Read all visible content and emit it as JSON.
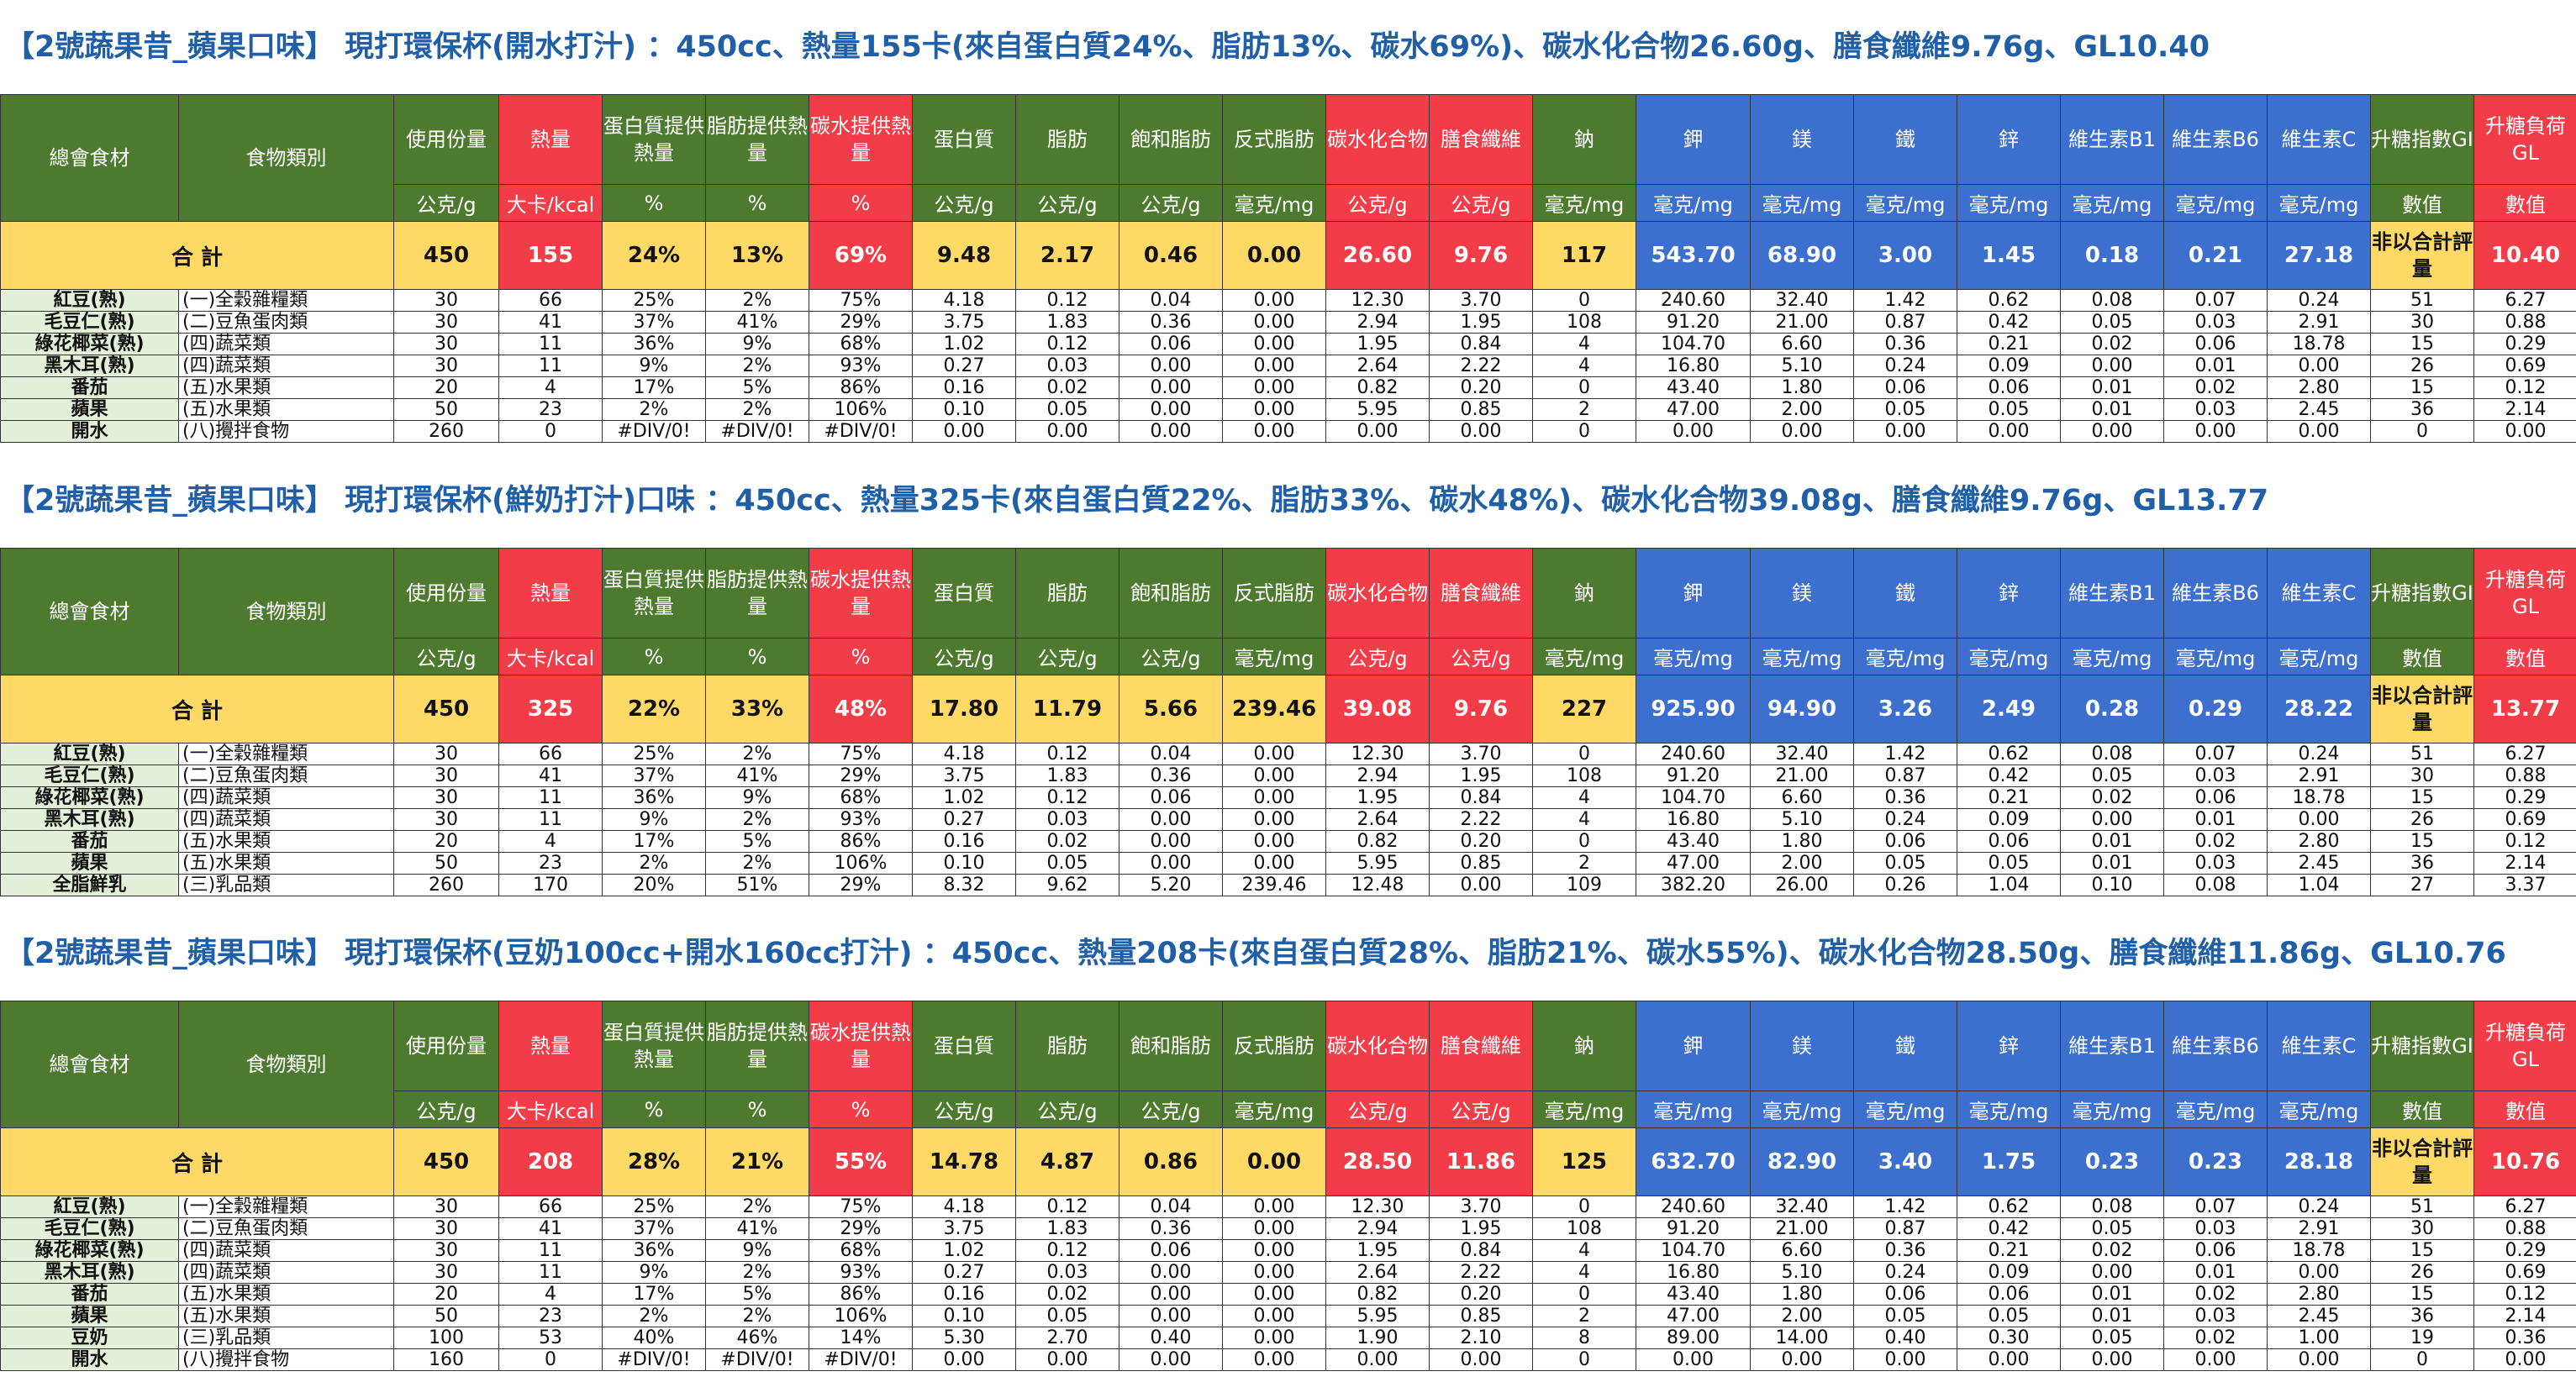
{
  "columns": [
    {
      "name": "總會食材",
      "unit": "",
      "color": "g"
    },
    {
      "name": "食物類別",
      "unit": "",
      "color": "g"
    },
    {
      "name": "使用份量",
      "unit": "公克/g",
      "color": "g"
    },
    {
      "name": "熱量",
      "unit": "大卡/kcal",
      "color": "r"
    },
    {
      "name": "蛋白質提供熱量",
      "unit": "%",
      "color": "g"
    },
    {
      "name": "脂肪提供熱量",
      "unit": "%",
      "color": "g"
    },
    {
      "name": "碳水提供熱量",
      "unit": "%",
      "color": "r"
    },
    {
      "name": "蛋白質",
      "unit": "公克/g",
      "color": "g"
    },
    {
      "name": "脂肪",
      "unit": "公克/g",
      "color": "g"
    },
    {
      "name": "飽和脂肪",
      "unit": "公克/g",
      "color": "g"
    },
    {
      "name": "反式脂肪",
      "unit": "毫克/mg",
      "color": "g"
    },
    {
      "name": "碳水化合物",
      "unit": "公克/g",
      "color": "r"
    },
    {
      "name": "膳食纖維",
      "unit": "公克/g",
      "color": "r"
    },
    {
      "name": "鈉",
      "unit": "毫克/mg",
      "color": "g"
    },
    {
      "name": "鉀",
      "unit": "毫克/mg",
      "color": "b"
    },
    {
      "name": "鎂",
      "unit": "毫克/mg",
      "color": "b"
    },
    {
      "name": "鐵",
      "unit": "毫克/mg",
      "color": "b"
    },
    {
      "name": "鋅",
      "unit": "毫克/mg",
      "color": "b"
    },
    {
      "name": "維生素B1",
      "unit": "毫克/mg",
      "color": "b"
    },
    {
      "name": "維生素B6",
      "unit": "毫克/mg",
      "color": "b"
    },
    {
      "name": "維生素C",
      "unit": "毫克/mg",
      "color": "b"
    },
    {
      "name": "升糖指數GI",
      "unit": "數值",
      "color": "g"
    },
    {
      "name": "升糖負荷GL",
      "unit": "數值",
      "color": "r"
    }
  ],
  "total_label": "合 計",
  "gi_note": "非以合計評量",
  "sections": [
    {
      "title": "【2號蔬果昔_蘋果口味】 現打環保杯(開水打汁) ：450cc、熱量155卡(來自蛋白質24%、脂肪13%、碳水69%)、碳水化合物26.60g、膳食纖維9.76g、GL10.40",
      "totals": [
        "450",
        "155",
        "24%",
        "13%",
        "69%",
        "9.48",
        "2.17",
        "0.46",
        "0.00",
        "26.60",
        "9.76",
        "117",
        "543.70",
        "68.90",
        "3.00",
        "1.45",
        "0.18",
        "0.21",
        "27.18",
        "10.40"
      ],
      "rows": [
        [
          "紅豆(熟)",
          "(一)全穀雜糧類",
          "30",
          "66",
          "25%",
          "2%",
          "75%",
          "4.18",
          "0.12",
          "0.04",
          "0.00",
          "12.30",
          "3.70",
          "0",
          "240.60",
          "32.40",
          "1.42",
          "0.62",
          "0.08",
          "0.07",
          "0.24",
          "51",
          "6.27"
        ],
        [
          "毛豆仁(熟)",
          "(二)豆魚蛋肉類",
          "30",
          "41",
          "37%",
          "41%",
          "29%",
          "3.75",
          "1.83",
          "0.36",
          "0.00",
          "2.94",
          "1.95",
          "108",
          "91.20",
          "21.00",
          "0.87",
          "0.42",
          "0.05",
          "0.03",
          "2.91",
          "30",
          "0.88"
        ],
        [
          "綠花椰菜(熟)",
          "(四)蔬菜類",
          "30",
          "11",
          "36%",
          "9%",
          "68%",
          "1.02",
          "0.12",
          "0.06",
          "0.00",
          "1.95",
          "0.84",
          "4",
          "104.70",
          "6.60",
          "0.36",
          "0.21",
          "0.02",
          "0.06",
          "18.78",
          "15",
          "0.29"
        ],
        [
          "黑木耳(熟)",
          "(四)蔬菜類",
          "30",
          "11",
          "9%",
          "2%",
          "93%",
          "0.27",
          "0.03",
          "0.00",
          "0.00",
          "2.64",
          "2.22",
          "4",
          "16.80",
          "5.10",
          "0.24",
          "0.09",
          "0.00",
          "0.01",
          "0.00",
          "26",
          "0.69"
        ],
        [
          "番茄",
          "(五)水果類",
          "20",
          "4",
          "17%",
          "5%",
          "86%",
          "0.16",
          "0.02",
          "0.00",
          "0.00",
          "0.82",
          "0.20",
          "0",
          "43.40",
          "1.80",
          "0.06",
          "0.06",
          "0.01",
          "0.02",
          "2.80",
          "15",
          "0.12"
        ],
        [
          "蘋果",
          "(五)水果類",
          "50",
          "23",
          "2%",
          "2%",
          "106%",
          "0.10",
          "0.05",
          "0.00",
          "0.00",
          "5.95",
          "0.85",
          "2",
          "47.00",
          "2.00",
          "0.05",
          "0.05",
          "0.01",
          "0.03",
          "2.45",
          "36",
          "2.14"
        ],
        [
          "開水",
          "(八)攪拌食物",
          "260",
          "0",
          "#DIV/0!",
          "#DIV/0!",
          "#DIV/0!",
          "0.00",
          "0.00",
          "0.00",
          "0.00",
          "0.00",
          "0.00",
          "0",
          "0.00",
          "0.00",
          "0.00",
          "0.00",
          "0.00",
          "0.00",
          "0.00",
          "0",
          "0.00"
        ]
      ]
    },
    {
      "title": "【2號蔬果昔_蘋果口味】 現打環保杯(鮮奶打汁)口味 ：450cc、熱量325卡(來自蛋白質22%、脂肪33%、碳水48%)、碳水化合物39.08g、膳食纖維9.76g、GL13.77",
      "totals": [
        "450",
        "325",
        "22%",
        "33%",
        "48%",
        "17.80",
        "11.79",
        "5.66",
        "239.46",
        "39.08",
        "9.76",
        "227",
        "925.90",
        "94.90",
        "3.26",
        "2.49",
        "0.28",
        "0.29",
        "28.22",
        "13.77"
      ],
      "rows": [
        [
          "紅豆(熟)",
          "(一)全穀雜糧類",
          "30",
          "66",
          "25%",
          "2%",
          "75%",
          "4.18",
          "0.12",
          "0.04",
          "0.00",
          "12.30",
          "3.70",
          "0",
          "240.60",
          "32.40",
          "1.42",
          "0.62",
          "0.08",
          "0.07",
          "0.24",
          "51",
          "6.27"
        ],
        [
          "毛豆仁(熟)",
          "(二)豆魚蛋肉類",
          "30",
          "41",
          "37%",
          "41%",
          "29%",
          "3.75",
          "1.83",
          "0.36",
          "0.00",
          "2.94",
          "1.95",
          "108",
          "91.20",
          "21.00",
          "0.87",
          "0.42",
          "0.05",
          "0.03",
          "2.91",
          "30",
          "0.88"
        ],
        [
          "綠花椰菜(熟)",
          "(四)蔬菜類",
          "30",
          "11",
          "36%",
          "9%",
          "68%",
          "1.02",
          "0.12",
          "0.06",
          "0.00",
          "1.95",
          "0.84",
          "4",
          "104.70",
          "6.60",
          "0.36",
          "0.21",
          "0.02",
          "0.06",
          "18.78",
          "15",
          "0.29"
        ],
        [
          "黑木耳(熟)",
          "(四)蔬菜類",
          "30",
          "11",
          "9%",
          "2%",
          "93%",
          "0.27",
          "0.03",
          "0.00",
          "0.00",
          "2.64",
          "2.22",
          "4",
          "16.80",
          "5.10",
          "0.24",
          "0.09",
          "0.00",
          "0.01",
          "0.00",
          "26",
          "0.69"
        ],
        [
          "番茄",
          "(五)水果類",
          "20",
          "4",
          "17%",
          "5%",
          "86%",
          "0.16",
          "0.02",
          "0.00",
          "0.00",
          "0.82",
          "0.20",
          "0",
          "43.40",
          "1.80",
          "0.06",
          "0.06",
          "0.01",
          "0.02",
          "2.80",
          "15",
          "0.12"
        ],
        [
          "蘋果",
          "(五)水果類",
          "50",
          "23",
          "2%",
          "2%",
          "106%",
          "0.10",
          "0.05",
          "0.00",
          "0.00",
          "5.95",
          "0.85",
          "2",
          "47.00",
          "2.00",
          "0.05",
          "0.05",
          "0.01",
          "0.03",
          "2.45",
          "36",
          "2.14"
        ],
        [
          "全脂鮮乳",
          "(三)乳品類",
          "260",
          "170",
          "20%",
          "51%",
          "29%",
          "8.32",
          "9.62",
          "5.20",
          "239.46",
          "12.48",
          "0.00",
          "109",
          "382.20",
          "26.00",
          "0.26",
          "1.04",
          "0.10",
          "0.08",
          "1.04",
          "27",
          "3.37"
        ]
      ]
    },
    {
      "title": "【2號蔬果昔_蘋果口味】 現打環保杯(豆奶100cc+開水160cc打汁) ：450cc、熱量208卡(來自蛋白質28%、脂肪21%、碳水55%)、碳水化合物28.50g、膳食纖維11.86g、GL10.76",
      "totals": [
        "450",
        "208",
        "28%",
        "21%",
        "55%",
        "14.78",
        "4.87",
        "0.86",
        "0.00",
        "28.50",
        "11.86",
        "125",
        "632.70",
        "82.90",
        "3.40",
        "1.75",
        "0.23",
        "0.23",
        "28.18",
        "10.76"
      ],
      "rows": [
        [
          "紅豆(熟)",
          "(一)全穀雜糧類",
          "30",
          "66",
          "25%",
          "2%",
          "75%",
          "4.18",
          "0.12",
          "0.04",
          "0.00",
          "12.30",
          "3.70",
          "0",
          "240.60",
          "32.40",
          "1.42",
          "0.62",
          "0.08",
          "0.07",
          "0.24",
          "51",
          "6.27"
        ],
        [
          "毛豆仁(熟)",
          "(二)豆魚蛋肉類",
          "30",
          "41",
          "37%",
          "41%",
          "29%",
          "3.75",
          "1.83",
          "0.36",
          "0.00",
          "2.94",
          "1.95",
          "108",
          "91.20",
          "21.00",
          "0.87",
          "0.42",
          "0.05",
          "0.03",
          "2.91",
          "30",
          "0.88"
        ],
        [
          "綠花椰菜(熟)",
          "(四)蔬菜類",
          "30",
          "11",
          "36%",
          "9%",
          "68%",
          "1.02",
          "0.12",
          "0.06",
          "0.00",
          "1.95",
          "0.84",
          "4",
          "104.70",
          "6.60",
          "0.36",
          "0.21",
          "0.02",
          "0.06",
          "18.78",
          "15",
          "0.29"
        ],
        [
          "黑木耳(熟)",
          "(四)蔬菜類",
          "30",
          "11",
          "9%",
          "2%",
          "93%",
          "0.27",
          "0.03",
          "0.00",
          "0.00",
          "2.64",
          "2.22",
          "4",
          "16.80",
          "5.10",
          "0.24",
          "0.09",
          "0.00",
          "0.01",
          "0.00",
          "26",
          "0.69"
        ],
        [
          "番茄",
          "(五)水果類",
          "20",
          "4",
          "17%",
          "5%",
          "86%",
          "0.16",
          "0.02",
          "0.00",
          "0.00",
          "0.82",
          "0.20",
          "0",
          "43.40",
          "1.80",
          "0.06",
          "0.06",
          "0.01",
          "0.02",
          "2.80",
          "15",
          "0.12"
        ],
        [
          "蘋果",
          "(五)水果類",
          "50",
          "23",
          "2%",
          "2%",
          "106%",
          "0.10",
          "0.05",
          "0.00",
          "0.00",
          "5.95",
          "0.85",
          "2",
          "47.00",
          "2.00",
          "0.05",
          "0.05",
          "0.01",
          "0.03",
          "2.45",
          "36",
          "2.14"
        ],
        [
          "豆奶",
          "(三)乳品類",
          "100",
          "53",
          "40%",
          "46%",
          "14%",
          "5.30",
          "2.70",
          "0.40",
          "0.00",
          "1.90",
          "2.10",
          "8",
          "89.00",
          "14.00",
          "0.40",
          "0.30",
          "0.05",
          "0.02",
          "1.00",
          "19",
          "0.36"
        ],
        [
          "開水",
          "(八)攪拌食物",
          "160",
          "0",
          "#DIV/0!",
          "#DIV/0!",
          "#DIV/0!",
          "0.00",
          "0.00",
          "0.00",
          "0.00",
          "0.00",
          "0.00",
          "0",
          "0.00",
          "0.00",
          "0.00",
          "0.00",
          "0.00",
          "0.00",
          "0.00",
          "0",
          "0.00"
        ]
      ]
    }
  ]
}
